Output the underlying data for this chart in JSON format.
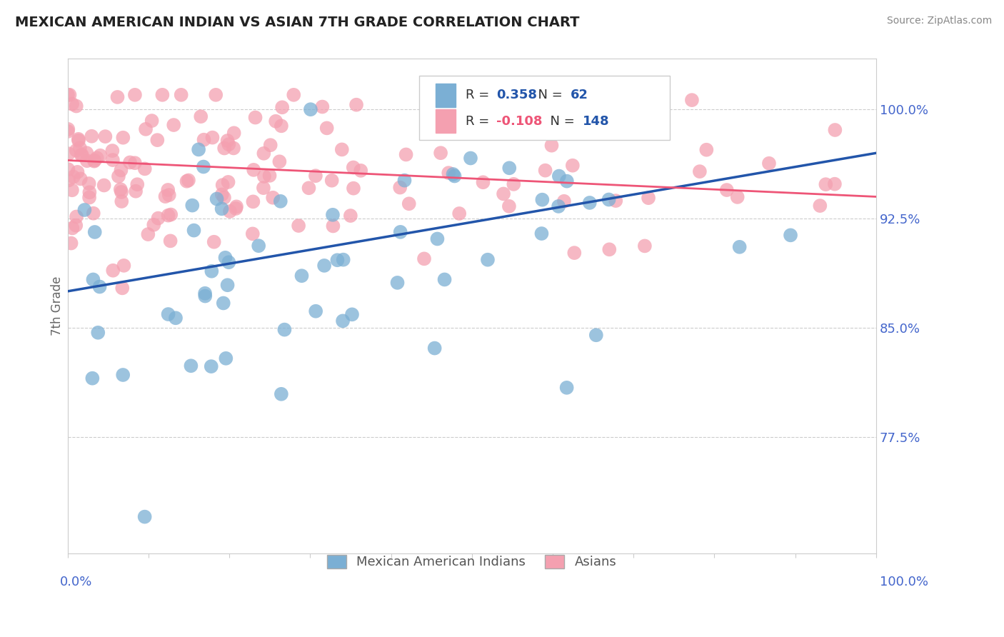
{
  "title": "MEXICAN AMERICAN INDIAN VS ASIAN 7TH GRADE CORRELATION CHART",
  "source": "Source: ZipAtlas.com",
  "ylabel": "7th Grade",
  "ytick_values": [
    0.775,
    0.85,
    0.925,
    1.0
  ],
  "ytick_labels": [
    "77.5%",
    "85.0%",
    "92.5%",
    "100.0%"
  ],
  "xlim": [
    0.0,
    1.0
  ],
  "ylim": [
    0.695,
    1.035
  ],
  "legend_r_blue": "0.358",
  "legend_n_blue": "62",
  "legend_r_pink": "-0.108",
  "legend_n_pink": "148",
  "legend_label_blue": "Mexican American Indians",
  "legend_label_pink": "Asians",
  "blue_color": "#7BAFD4",
  "pink_color": "#F4A0B0",
  "trendline_blue": "#2255AA",
  "trendline_pink": "#EE5577",
  "background_color": "#FFFFFF",
  "grid_color": "#CCCCCC",
  "spine_color": "#CCCCCC",
  "title_color": "#222222",
  "source_color": "#888888",
  "axis_label_color": "#4466CC",
  "ylabel_color": "#666666",
  "legend_text_color": "#333333",
  "legend_r_color_blue": "#2255AA",
  "legend_r_color_pink": "#EE5577",
  "legend_n_color": "#2255AA"
}
